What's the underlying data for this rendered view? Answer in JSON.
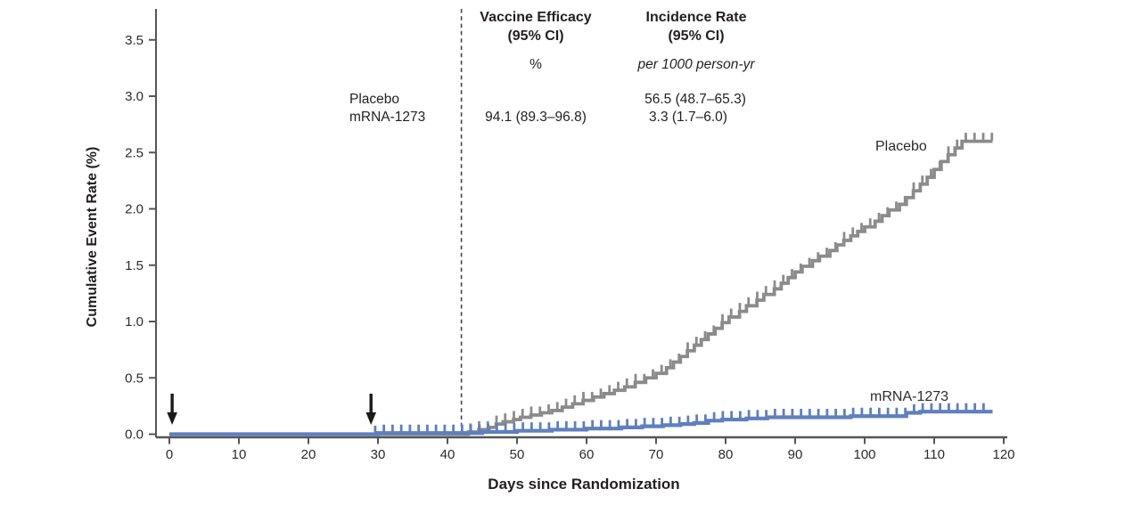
{
  "stats_panel": {
    "row_labels": {
      "placebo": "Placebo",
      "mrna": "mRNA-1273"
    },
    "columns": [
      {
        "header_line1": "Vaccine Efficacy",
        "header_line2": "(95% CI)",
        "unit": "%",
        "row_placebo": "",
        "row_mrna": "94.1 (89.3–96.8)"
      },
      {
        "header_line1": "Incidence Rate",
        "header_line2": "(95% CI)",
        "unit": "per 1000 person-yr",
        "row_placebo": "56.5 (48.7–65.3)",
        "row_mrna": "3.3 (1.7–6.0)"
      }
    ]
  },
  "chart_data": {
    "type": "line",
    "subtype": "kaplan-meier-step",
    "title": "",
    "xlabel": "Days since Randomization",
    "ylabel": "Cumulative Event Rate (%)",
    "xlim": [
      0,
      120
    ],
    "ylim": [
      0,
      3.5
    ],
    "x_ticks": [
      0,
      10,
      20,
      30,
      40,
      50,
      60,
      70,
      80,
      90,
      100,
      110,
      120
    ],
    "y_ticks": [
      "0.0",
      "0.5",
      "1.0",
      "1.5",
      "2.0",
      "2.5",
      "3.0",
      "3.5"
    ],
    "grid": false,
    "legend_position": "on-curve",
    "event_dashed_line_day": 42,
    "dose_arrow_days": [
      0.4,
      29
    ],
    "axis_color": "#55565a",
    "dashed_line_color": "#454545",
    "arrow_color": "#1a1a1a",
    "series": [
      {
        "name": "Placebo",
        "color": "#8b8b8b",
        "start_day": 0,
        "end_day": 118.4,
        "final_value": 2.6,
        "steps": [
          [
            43,
            0.02
          ],
          [
            44.5,
            0.04
          ],
          [
            46,
            0.06
          ],
          [
            47,
            0.09
          ],
          [
            48,
            0.11
          ],
          [
            49.5,
            0.13
          ],
          [
            50.5,
            0.15
          ],
          [
            52,
            0.17
          ],
          [
            53.5,
            0.19
          ],
          [
            55,
            0.21
          ],
          [
            56.5,
            0.24
          ],
          [
            58,
            0.27
          ],
          [
            59.5,
            0.3
          ],
          [
            61,
            0.33
          ],
          [
            62.5,
            0.36
          ],
          [
            64,
            0.39
          ],
          [
            65.5,
            0.42
          ],
          [
            67,
            0.46
          ],
          [
            68.5,
            0.5
          ],
          [
            70,
            0.54
          ],
          [
            71.5,
            0.59
          ],
          [
            72.5,
            0.64
          ],
          [
            73.5,
            0.69
          ],
          [
            74.5,
            0.74
          ],
          [
            75.5,
            0.79
          ],
          [
            76.5,
            0.84
          ],
          [
            77.5,
            0.89
          ],
          [
            78.5,
            0.94
          ],
          [
            79.5,
            0.99
          ],
          [
            80.5,
            1.04
          ],
          [
            82,
            1.09
          ],
          [
            83,
            1.14
          ],
          [
            84.5,
            1.19
          ],
          [
            85.5,
            1.24
          ],
          [
            87,
            1.29
          ],
          [
            88,
            1.34
          ],
          [
            89,
            1.39
          ],
          [
            90,
            1.44
          ],
          [
            91,
            1.49
          ],
          [
            92.5,
            1.54
          ],
          [
            93.5,
            1.58
          ],
          [
            95,
            1.63
          ],
          [
            96,
            1.68
          ],
          [
            97,
            1.72
          ],
          [
            98,
            1.76
          ],
          [
            99,
            1.8
          ],
          [
            100,
            1.84
          ],
          [
            101.5,
            1.89
          ],
          [
            102.5,
            1.94
          ],
          [
            103.5,
            1.99
          ],
          [
            105,
            2.04
          ],
          [
            106,
            2.1
          ],
          [
            107,
            2.16
          ],
          [
            108,
            2.22
          ],
          [
            109,
            2.28
          ],
          [
            110,
            2.35
          ],
          [
            111,
            2.42
          ],
          [
            112,
            2.48
          ],
          [
            113,
            2.54
          ],
          [
            114,
            2.6
          ]
        ],
        "censor_ticks": {
          "start": 43.3,
          "end": 118.3,
          "interval": 1.25
        }
      },
      {
        "name": "mRNA-1273",
        "color": "#5f7fbe",
        "start_day": 0,
        "end_day": 118.4,
        "final_value": 0.2,
        "steps": [
          [
            30,
            0.01
          ],
          [
            45,
            0.02
          ],
          [
            50,
            0.03
          ],
          [
            55,
            0.04
          ],
          [
            60,
            0.05
          ],
          [
            65,
            0.06
          ],
          [
            68,
            0.07
          ],
          [
            71,
            0.08
          ],
          [
            73.5,
            0.09
          ],
          [
            75.5,
            0.1
          ],
          [
            77.5,
            0.12
          ],
          [
            79.5,
            0.13
          ],
          [
            83,
            0.14
          ],
          [
            86,
            0.15
          ],
          [
            98,
            0.16
          ],
          [
            106,
            0.19
          ],
          [
            108,
            0.2
          ]
        ],
        "censor_ticks": {
          "start": 29.6,
          "end": 118.3,
          "interval": 1.25
        }
      }
    ]
  }
}
